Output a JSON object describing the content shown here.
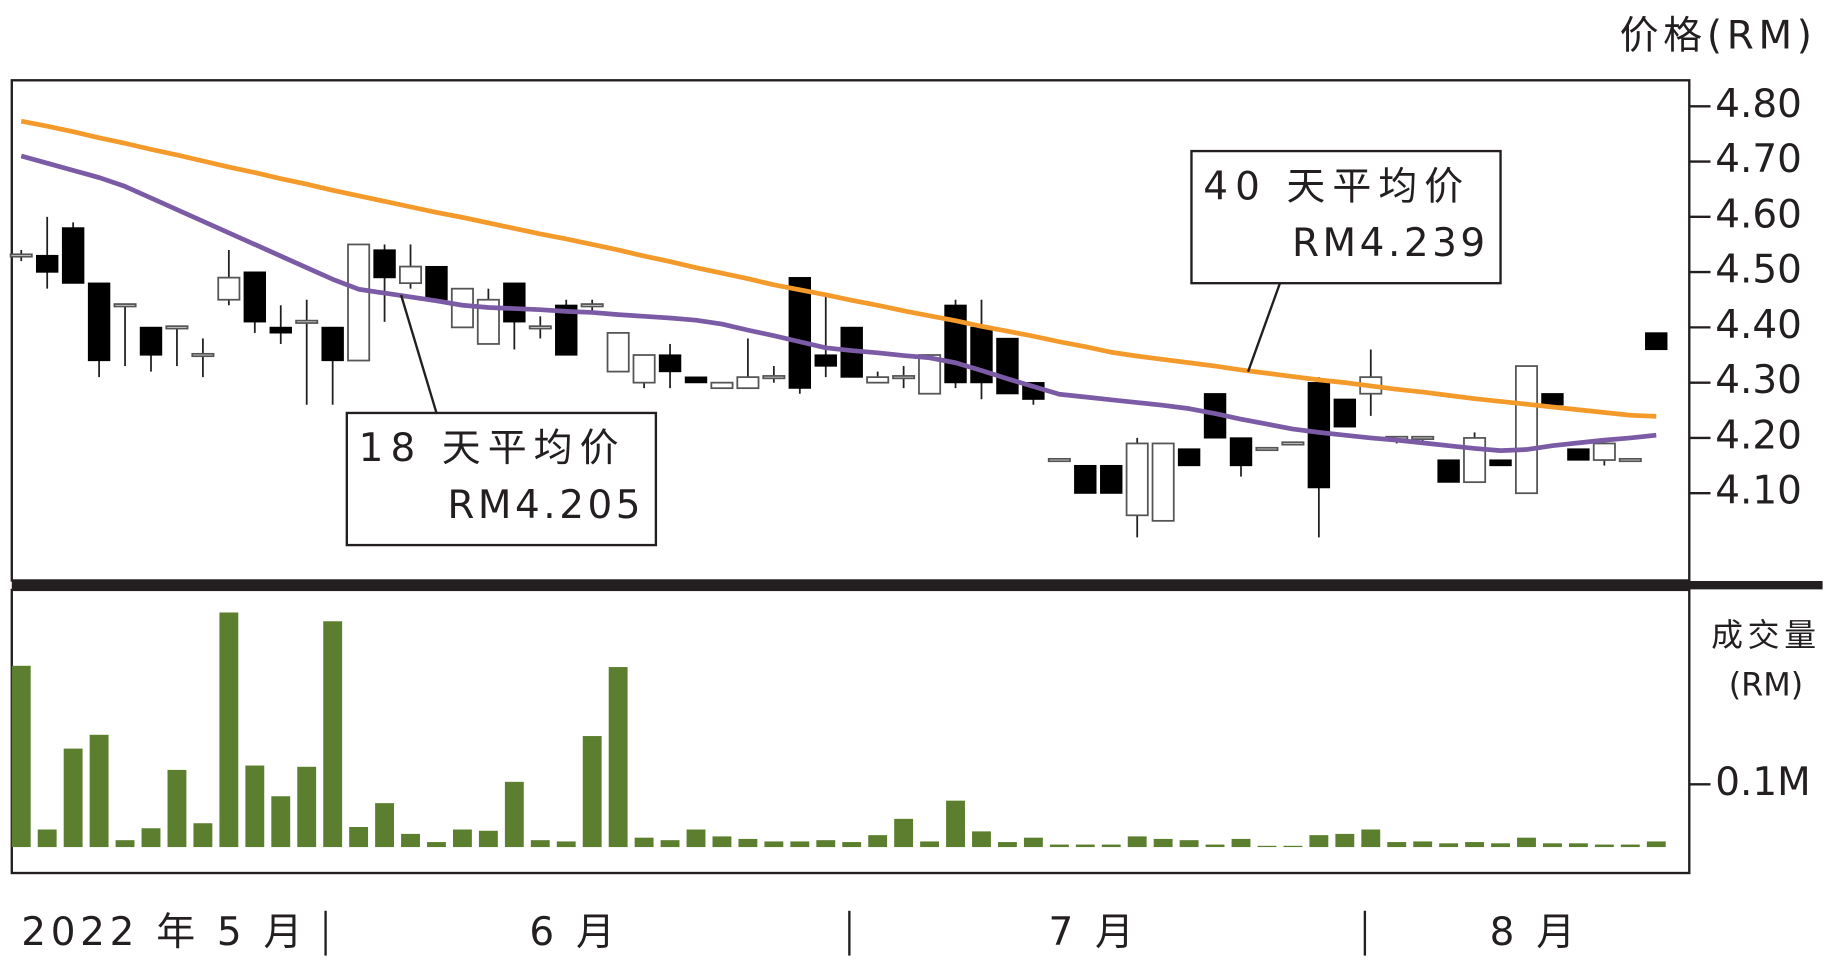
{
  "chart_data": [
    {
      "type": "candlestick",
      "y_label": "价格(RM)",
      "ylim": [
        3.94,
        4.847
      ],
      "yticks": [
        {
          "value": 4.8,
          "label": "4.80"
        },
        {
          "value": 4.7,
          "label": "4.70"
        },
        {
          "value": 4.6,
          "label": "4.60"
        },
        {
          "value": 4.5,
          "label": "4.50"
        },
        {
          "value": 4.4,
          "label": "4.40"
        },
        {
          "value": 4.3,
          "label": "4.30"
        },
        {
          "value": 4.2,
          "label": "4.20"
        },
        {
          "value": 4.1,
          "label": "4.10"
        }
      ],
      "x_labels": [
        "2022 年 5 月",
        "6 月",
        "7 月",
        "8 月"
      ],
      "up_color": "#ffffff",
      "down_color": "#000000",
      "open": [
        4.53,
        4.53,
        4.58,
        4.48,
        4.44,
        4.4,
        4.4,
        4.35,
        4.45,
        4.5,
        4.4,
        4.41,
        4.4,
        4.34,
        4.54,
        4.48,
        4.51,
        4.4,
        4.37,
        4.48,
        4.4,
        4.44,
        4.44,
        4.32,
        4.3,
        4.35,
        4.31,
        4.29,
        4.29,
        4.31,
        4.49,
        4.35,
        4.4,
        4.3,
        4.31,
        4.28,
        4.44,
        4.4,
        4.38,
        4.3,
        4.16,
        4.15,
        4.15,
        4.06,
        4.05,
        4.18,
        4.28,
        4.2,
        4.18,
        4.19,
        4.3,
        4.27,
        4.28,
        4.2,
        4.2,
        4.16,
        4.12,
        4.16,
        4.1,
        4.28,
        4.18,
        4.16,
        4.16,
        4.39
      ],
      "high": [
        4.54,
        4.6,
        4.59,
        4.48,
        4.44,
        4.4,
        4.4,
        4.38,
        4.54,
        4.5,
        4.44,
        4.45,
        4.4,
        4.55,
        4.55,
        4.55,
        4.51,
        4.47,
        4.47,
        4.48,
        4.42,
        4.45,
        4.45,
        4.39,
        4.35,
        4.37,
        4.31,
        4.3,
        4.38,
        4.33,
        4.49,
        4.46,
        4.4,
        4.32,
        4.33,
        4.35,
        4.45,
        4.45,
        4.38,
        4.3,
        4.16,
        4.15,
        4.15,
        4.2,
        4.19,
        4.18,
        4.28,
        4.2,
        4.18,
        4.19,
        4.31,
        4.27,
        4.36,
        4.2,
        4.2,
        4.16,
        4.21,
        4.16,
        4.33,
        4.28,
        4.18,
        4.19,
        4.16,
        4.39
      ],
      "low": [
        4.52,
        4.47,
        4.48,
        4.31,
        4.33,
        4.32,
        4.33,
        4.31,
        4.44,
        4.39,
        4.37,
        4.26,
        4.26,
        4.34,
        4.41,
        4.47,
        4.45,
        4.4,
        4.37,
        4.36,
        4.38,
        4.35,
        4.43,
        4.32,
        4.29,
        4.29,
        4.3,
        4.29,
        4.29,
        4.3,
        4.28,
        4.31,
        4.31,
        4.3,
        4.29,
        4.28,
        4.29,
        4.27,
        4.28,
        4.26,
        4.16,
        4.1,
        4.1,
        4.02,
        4.05,
        4.15,
        4.2,
        4.13,
        4.18,
        4.19,
        4.02,
        4.22,
        4.24,
        4.19,
        4.19,
        4.12,
        4.12,
        4.15,
        4.1,
        4.26,
        4.16,
        4.15,
        4.16,
        4.36
      ],
      "close": [
        4.53,
        4.5,
        4.48,
        4.34,
        4.44,
        4.35,
        4.4,
        4.35,
        4.49,
        4.41,
        4.39,
        4.41,
        4.34,
        4.55,
        4.49,
        4.51,
        4.45,
        4.47,
        4.45,
        4.41,
        4.4,
        4.35,
        4.44,
        4.39,
        4.35,
        4.32,
        4.3,
        4.3,
        4.31,
        4.31,
        4.29,
        4.33,
        4.31,
        4.31,
        4.31,
        4.35,
        4.3,
        4.3,
        4.28,
        4.27,
        4.16,
        4.1,
        4.1,
        4.19,
        4.19,
        4.15,
        4.2,
        4.15,
        4.18,
        4.19,
        4.11,
        4.22,
        4.31,
        4.2,
        4.2,
        4.12,
        4.2,
        4.15,
        4.33,
        4.26,
        4.16,
        4.19,
        4.16,
        4.36
      ],
      "series": [
        {
          "name": "40 天平均价",
          "color": "#f39a2b",
          "label": "RM4.239",
          "values": [
            4.773,
            4.764,
            4.754,
            4.743,
            4.733,
            4.722,
            4.712,
            4.701,
            4.69,
            4.68,
            4.669,
            4.659,
            4.648,
            4.638,
            4.628,
            4.618,
            4.608,
            4.599,
            4.589,
            4.579,
            4.569,
            4.56,
            4.55,
            4.54,
            4.529,
            4.519,
            4.508,
            4.498,
            4.488,
            4.477,
            4.468,
            4.459,
            4.449,
            4.44,
            4.43,
            4.421,
            4.412,
            4.402,
            4.393,
            4.384,
            4.374,
            4.365,
            4.355,
            4.348,
            4.342,
            4.336,
            4.33,
            4.323,
            4.317,
            4.311,
            4.305,
            4.3,
            4.294,
            4.288,
            4.283,
            4.277,
            4.271,
            4.266,
            4.261,
            4.256,
            4.251,
            4.246,
            4.241,
            4.239
          ]
        },
        {
          "name": "18 天平均价",
          "color": "#7b5aa6",
          "label": "RM4.205",
          "values": [
            4.71,
            4.697,
            4.684,
            4.671,
            4.655,
            4.634,
            4.613,
            4.592,
            4.571,
            4.55,
            4.529,
            4.508,
            4.487,
            4.469,
            4.462,
            4.455,
            4.448,
            4.44,
            4.436,
            4.434,
            4.432,
            4.429,
            4.427,
            4.423,
            4.42,
            4.417,
            4.413,
            4.406,
            4.395,
            4.385,
            4.374,
            4.363,
            4.358,
            4.354,
            4.349,
            4.345,
            4.336,
            4.322,
            4.307,
            4.293,
            4.279,
            4.274,
            4.269,
            4.264,
            4.259,
            4.253,
            4.244,
            4.234,
            4.225,
            4.216,
            4.21,
            4.205,
            4.2,
            4.196,
            4.191,
            4.186,
            4.181,
            4.177,
            4.179,
            4.186,
            4.191,
            4.196,
            4.2,
            4.205
          ]
        }
      ]
    },
    {
      "type": "bar",
      "y_label": [
        "成交量",
        "(RM)"
      ],
      "color": "#5b7f2e",
      "ylim": [
        0,
        0.41
      ],
      "yticks": [
        {
          "value": 0.1,
          "label": "0.1M"
        }
      ],
      "values": [
        0.289,
        0.028,
        0.157,
        0.179,
        0.011,
        0.03,
        0.123,
        0.038,
        0.374,
        0.13,
        0.081,
        0.128,
        0.36,
        0.032,
        0.07,
        0.021,
        0.008,
        0.028,
        0.026,
        0.104,
        0.011,
        0.009,
        0.177,
        0.287,
        0.015,
        0.011,
        0.028,
        0.017,
        0.013,
        0.009,
        0.009,
        0.011,
        0.008,
        0.019,
        0.045,
        0.009,
        0.074,
        0.025,
        0.008,
        0.015,
        0.004,
        0.004,
        0.004,
        0.017,
        0.013,
        0.011,
        0.004,
        0.013,
        0.002,
        0.002,
        0.019,
        0.021,
        0.028,
        0.008,
        0.009,
        0.006,
        0.008,
        0.006,
        0.015,
        0.006,
        0.006,
        0.004,
        0.004,
        0.009
      ]
    }
  ]
}
